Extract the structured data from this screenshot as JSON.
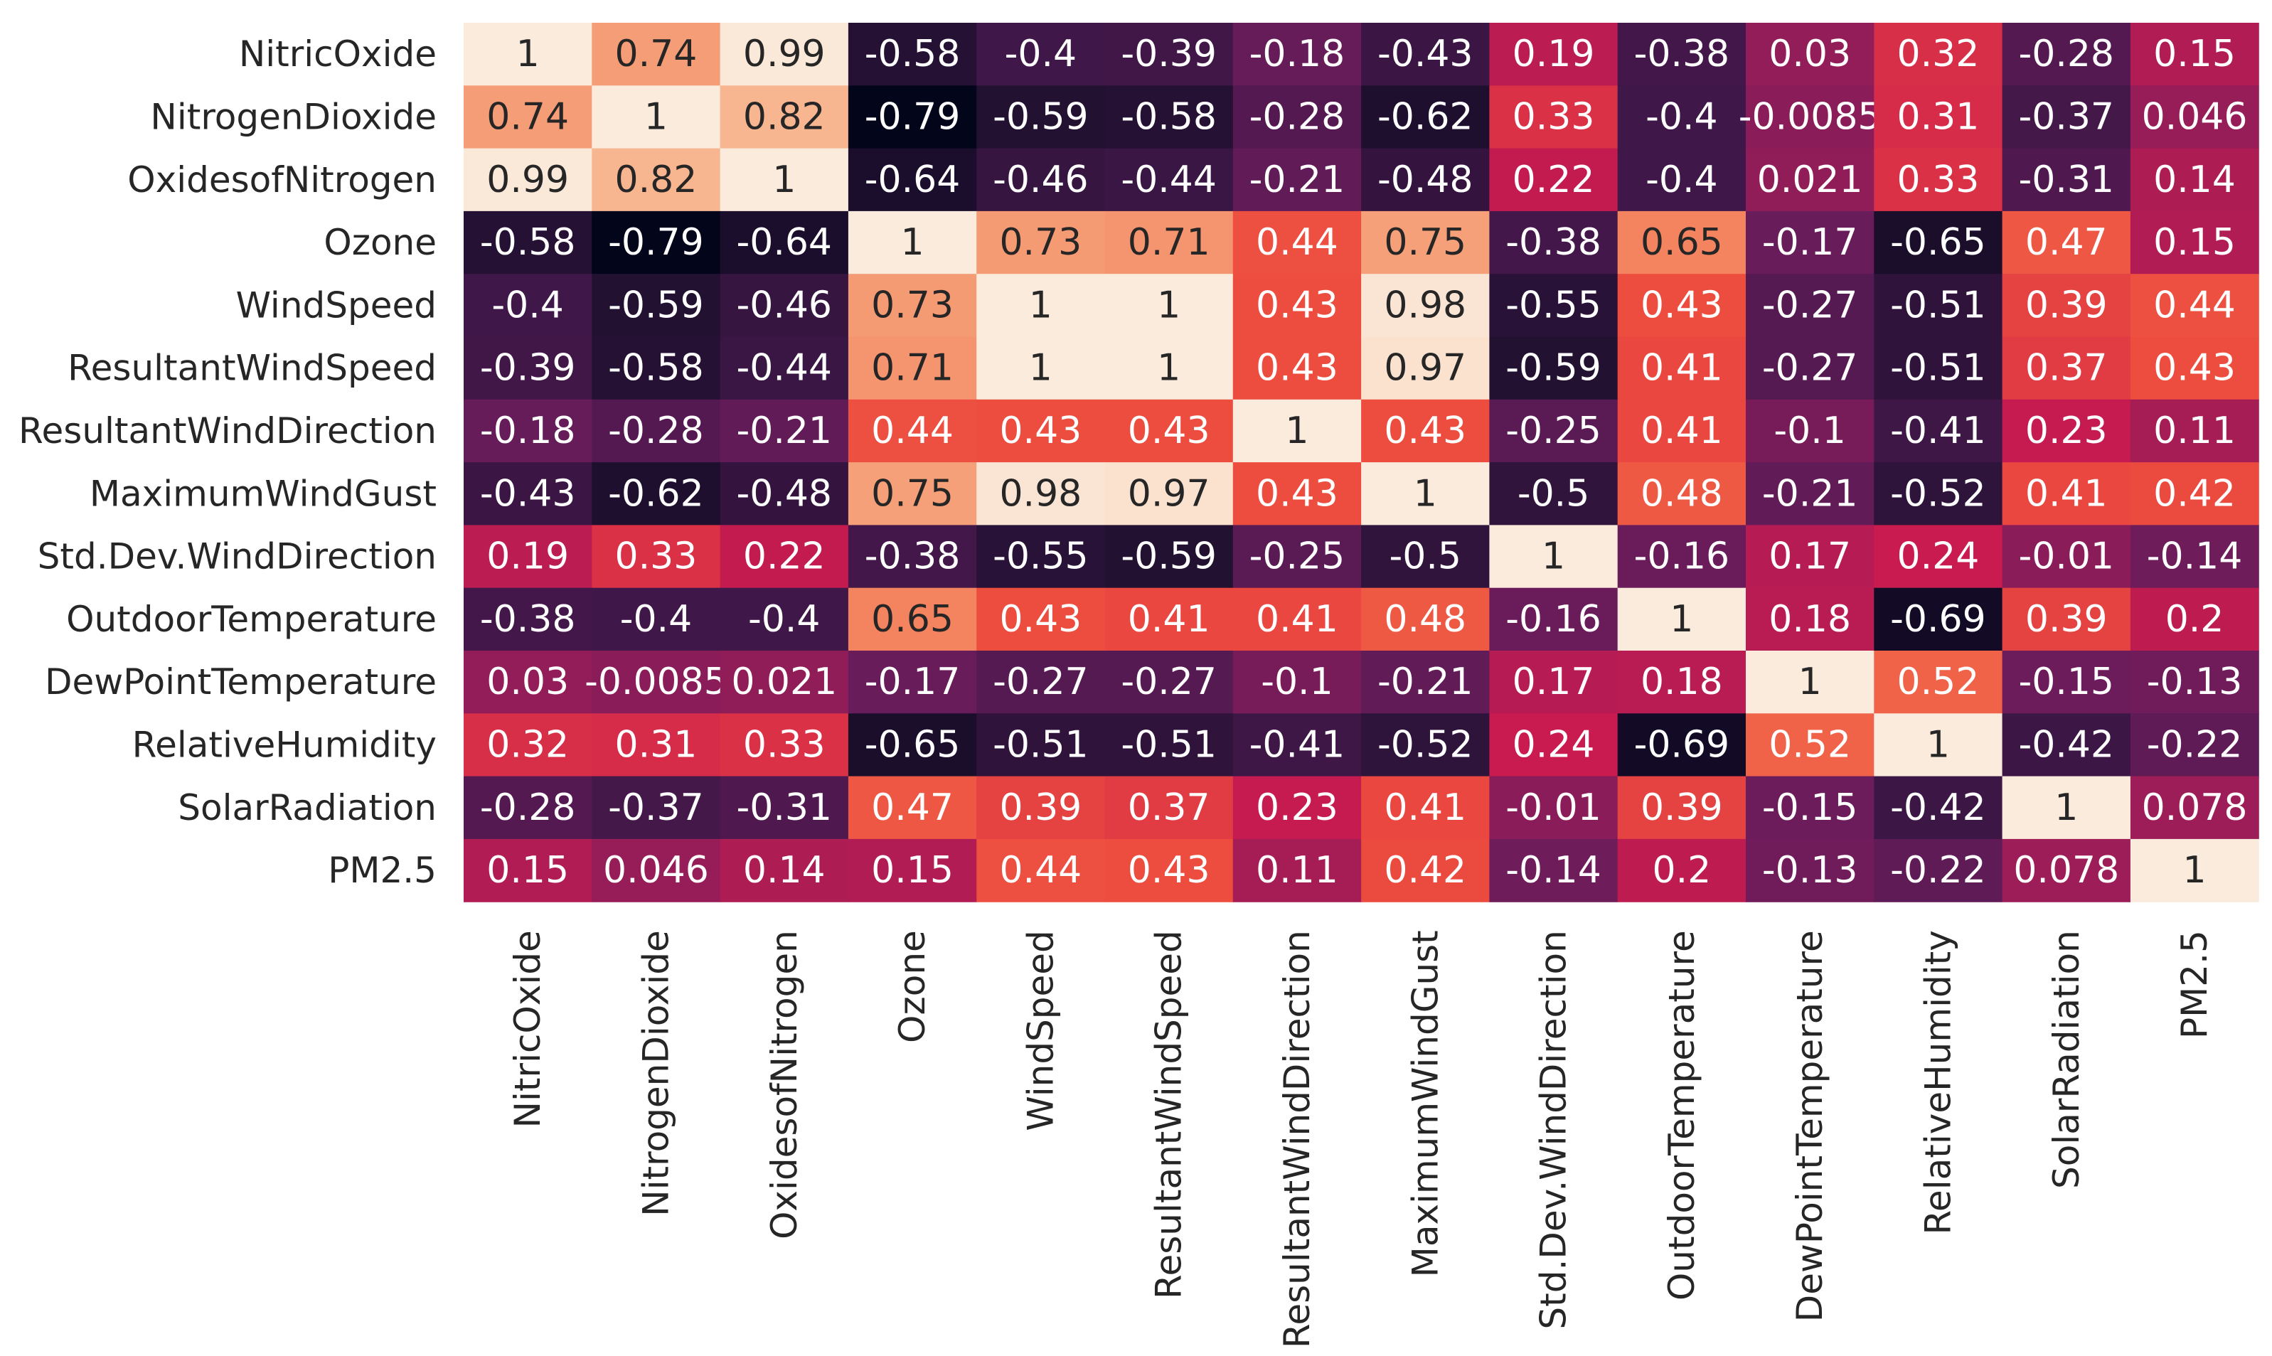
{
  "chart_data": {
    "type": "heatmap",
    "colormap": "rocket",
    "value_range": [
      -0.79,
      1
    ],
    "annotated": true,
    "rows": [
      "NitricOxide",
      "NitrogenDioxide",
      "OxidesofNitrogen",
      "Ozone",
      "WindSpeed",
      "ResultantWindSpeed",
      "ResultantWindDirection",
      "MaximumWindGust",
      "Std.Dev.WindDirection",
      "OutdoorTemperature",
      "DewPointTemperature",
      "RelativeHumidity",
      "SolarRadiation",
      "PM2.5"
    ],
    "columns": [
      "NitricOxide",
      "NitrogenDioxide",
      "OxidesofNitrogen",
      "Ozone",
      "WindSpeed",
      "ResultantWindSpeed",
      "ResultantWindDirection",
      "MaximumWindGust",
      "Std.Dev.WindDirection",
      "OutdoorTemperature",
      "DewPointTemperature",
      "RelativeHumidity",
      "SolarRadiation",
      "PM2.5"
    ],
    "values": [
      [
        1,
        0.74,
        0.99,
        -0.58,
        -0.4,
        -0.39,
        -0.18,
        -0.43,
        0.19,
        -0.38,
        0.03,
        0.32,
        -0.28,
        0.15
      ],
      [
        0.74,
        1,
        0.82,
        -0.79,
        -0.59,
        -0.58,
        -0.28,
        -0.62,
        0.33,
        -0.4,
        -0.0085,
        0.31,
        -0.37,
        0.046
      ],
      [
        0.99,
        0.82,
        1,
        -0.64,
        -0.46,
        -0.44,
        -0.21,
        -0.48,
        0.22,
        -0.4,
        0.021,
        0.33,
        -0.31,
        0.14
      ],
      [
        -0.58,
        -0.79,
        -0.64,
        1,
        0.73,
        0.71,
        0.44,
        0.75,
        -0.38,
        0.65,
        -0.17,
        -0.65,
        0.47,
        0.15
      ],
      [
        -0.4,
        -0.59,
        -0.46,
        0.73,
        1,
        1,
        0.43,
        0.98,
        -0.55,
        0.43,
        -0.27,
        -0.51,
        0.39,
        0.44
      ],
      [
        -0.39,
        -0.58,
        -0.44,
        0.71,
        1,
        1,
        0.43,
        0.97,
        -0.59,
        0.41,
        -0.27,
        -0.51,
        0.37,
        0.43
      ],
      [
        -0.18,
        -0.28,
        -0.21,
        0.44,
        0.43,
        0.43,
        1,
        0.43,
        -0.25,
        0.41,
        -0.1,
        -0.41,
        0.23,
        0.11
      ],
      [
        -0.43,
        -0.62,
        -0.48,
        0.75,
        0.98,
        0.97,
        0.43,
        1,
        -0.5,
        0.48,
        -0.21,
        -0.52,
        0.41,
        0.42
      ],
      [
        0.19,
        0.33,
        0.22,
        -0.38,
        -0.55,
        -0.59,
        -0.25,
        -0.5,
        1,
        -0.16,
        0.17,
        0.24,
        -0.01,
        -0.14
      ],
      [
        -0.38,
        -0.4,
        -0.4,
        0.65,
        0.43,
        0.41,
        0.41,
        0.48,
        -0.16,
        1,
        0.18,
        -0.69,
        0.39,
        0.2
      ],
      [
        0.03,
        -0.0085,
        0.021,
        -0.17,
        -0.27,
        -0.27,
        -0.1,
        -0.21,
        0.17,
        0.18,
        1,
        0.52,
        -0.15,
        -0.13
      ],
      [
        0.32,
        0.31,
        0.33,
        -0.65,
        -0.51,
        -0.51,
        -0.41,
        -0.52,
        0.24,
        -0.69,
        0.52,
        1,
        -0.42,
        -0.22
      ],
      [
        -0.28,
        -0.37,
        -0.31,
        0.47,
        0.39,
        0.37,
        0.23,
        0.41,
        -0.01,
        0.39,
        -0.15,
        -0.42,
        1,
        0.078
      ],
      [
        0.15,
        0.046,
        0.14,
        0.15,
        0.44,
        0.43,
        0.11,
        0.42,
        -0.14,
        0.2,
        -0.13,
        -0.22,
        0.078,
        1
      ]
    ],
    "title": "",
    "xlabel": "",
    "ylabel": "",
    "legend": "none"
  }
}
